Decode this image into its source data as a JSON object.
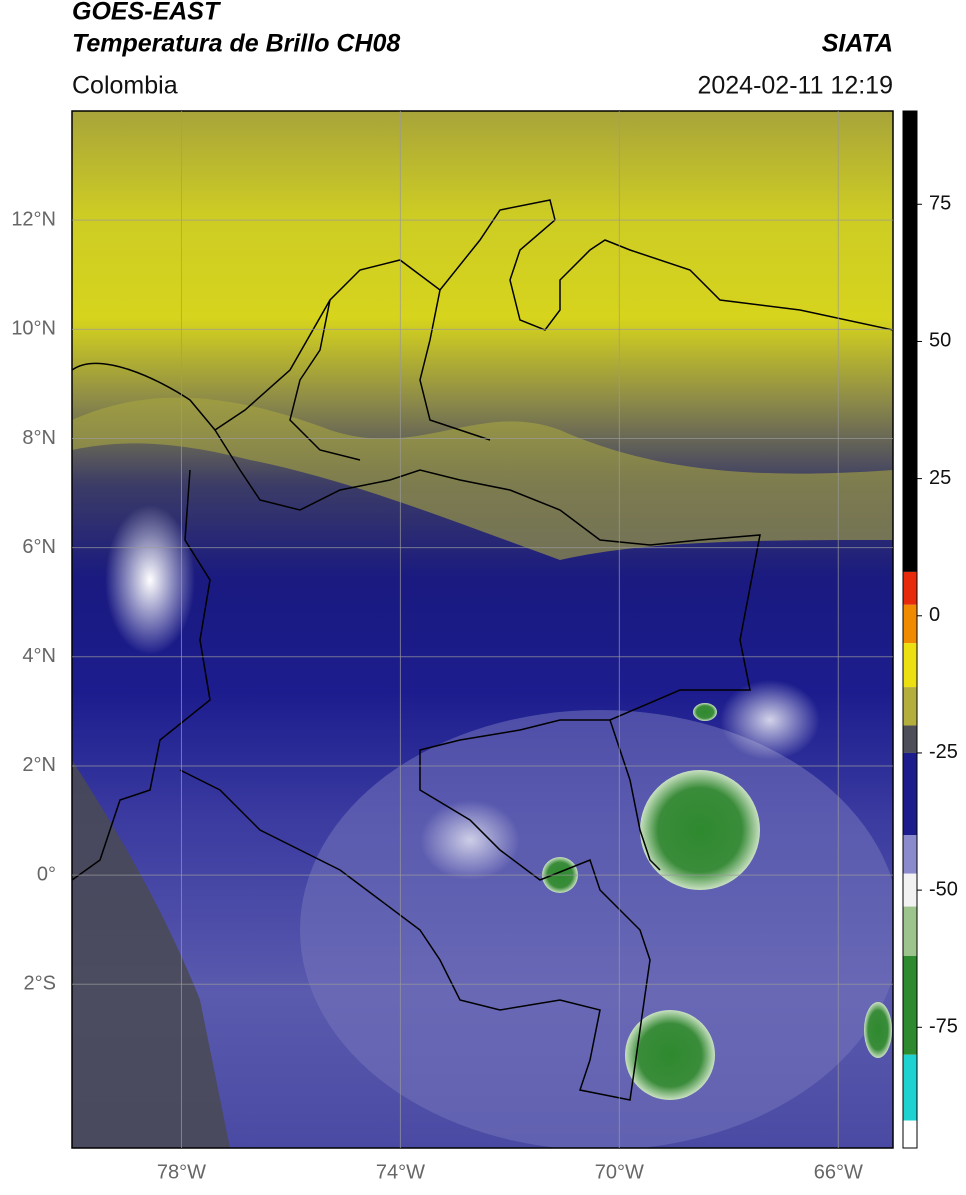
{
  "chart_data": {
    "type": "map",
    "title": "GOES-EAST",
    "subtitle": "Temperatura de Brillo CH08",
    "source": "SIATA",
    "region": "Colombia",
    "datetime": "2024-02-11 12:19",
    "xlim": [
      -80,
      -65
    ],
    "ylim": [
      -5,
      14
    ],
    "xticks": [
      {
        "value": -78,
        "label": "78°W"
      },
      {
        "value": -74,
        "label": "74°W"
      },
      {
        "value": -70,
        "label": "70°W"
      },
      {
        "value": -66,
        "label": "66°W"
      }
    ],
    "yticks": [
      {
        "value": 12,
        "label": "12°N"
      },
      {
        "value": 10,
        "label": "10°N"
      },
      {
        "value": 8,
        "label": "8°N"
      },
      {
        "value": 6,
        "label": "6°N"
      },
      {
        "value": 4,
        "label": "4°N"
      },
      {
        "value": 2,
        "label": "2°N"
      },
      {
        "value": 0,
        "label": "0°"
      },
      {
        "value": -2,
        "label": "2°S"
      }
    ],
    "grid": true,
    "grid_color": "#9a9a9a",
    "colorbar": {
      "lim": [
        -97,
        92
      ],
      "ticks": [
        75,
        50,
        25,
        0,
        -25,
        -50,
        -75
      ],
      "segments": [
        {
          "from": 92,
          "to": 8,
          "color": "#000000"
        },
        {
          "from": 8,
          "to": 2,
          "color": "#e82a0c"
        },
        {
          "from": 2,
          "to": -5,
          "color": "#f08a00"
        },
        {
          "from": -5,
          "to": -13,
          "color": "#ece010"
        },
        {
          "from": -13,
          "to": -20,
          "color": "#b4ae3c"
        },
        {
          "from": -20,
          "to": -25,
          "color": "#4e4e58"
        },
        {
          "from": -25,
          "to": -40,
          "color": "#1c1c8c"
        },
        {
          "from": -40,
          "to": -47,
          "color": "#8a8acc"
        },
        {
          "from": -47,
          "to": -53,
          "color": "#f2f2f2"
        },
        {
          "from": -53,
          "to": -62,
          "color": "#9cc48c"
        },
        {
          "from": -62,
          "to": -80,
          "color": "#2e8a2e"
        },
        {
          "from": -80,
          "to": -92,
          "color": "#1ed2d2"
        },
        {
          "from": -92,
          "to": -97,
          "color": "#ffffff"
        }
      ]
    }
  }
}
